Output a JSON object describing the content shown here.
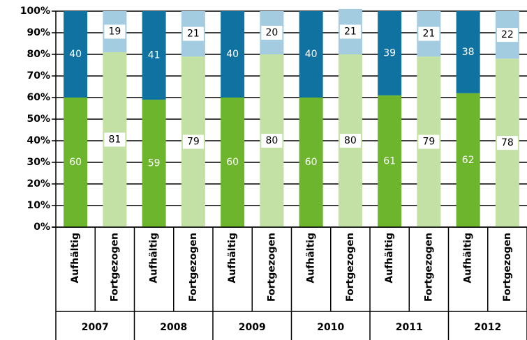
{
  "chart_data": {
    "type": "stacked_bar",
    "categories": [
      "Aufhältig",
      "Fortgezogen",
      "Aufhältig",
      "Fortgezogen",
      "Aufhältig",
      "Fortgezogen",
      "Aufhältig",
      "Fortgezogen",
      "Aufhältig",
      "Fortgezogen",
      "Aufhältig",
      "Fortgezogen"
    ],
    "groups": [
      "2007",
      "2008",
      "2009",
      "2010",
      "2011",
      "2012"
    ],
    "series": [
      {
        "colors": [
          "#6cb52d",
          "#c3e0a5",
          "#6cb52d",
          "#c3e0a5",
          "#6cb52d",
          "#c3e0a5",
          "#6cb52d",
          "#c3e0a5",
          "#6cb52d",
          "#c3e0a5",
          "#6cb52d",
          "#c3e0a5"
        ],
        "values": [
          60,
          81,
          59,
          79,
          60,
          80,
          60,
          80,
          61,
          79,
          62,
          78
        ]
      },
      {
        "colors": [
          "#0f72a0",
          "#a3cce0",
          "#0f72a0",
          "#a3cce0",
          "#0f72a0",
          "#a3cce0",
          "#0f72a0",
          "#a3cce0",
          "#0f72a0",
          "#a3cce0",
          "#0f72a0",
          "#a3cce0"
        ],
        "values": [
          40,
          19,
          41,
          21,
          40,
          20,
          40,
          21,
          39,
          21,
          38,
          22
        ]
      }
    ],
    "ylim": [
      0,
      100
    ],
    "yticks": [
      {
        "value": 0,
        "label": "0%"
      },
      {
        "value": 10,
        "label": "10%"
      },
      {
        "value": 20,
        "label": "20%"
      },
      {
        "value": 30,
        "label": "30%"
      },
      {
        "value": 40,
        "label": "40%"
      },
      {
        "value": 50,
        "label": "50%"
      },
      {
        "value": 60,
        "label": "60%"
      },
      {
        "value": 70,
        "label": "70%"
      },
      {
        "value": 80,
        "label": "80%"
      },
      {
        "value": 90,
        "label": "90%"
      },
      {
        "value": 100,
        "label": "100%"
      }
    ],
    "grid": true
  }
}
